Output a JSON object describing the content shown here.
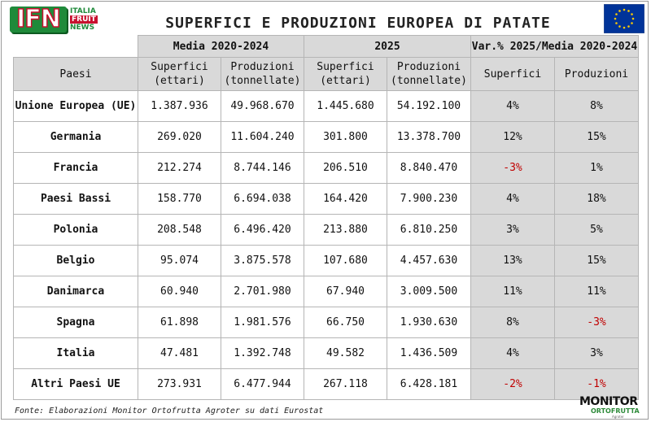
{
  "logo": {
    "letters": "IFN",
    "line1": "ITALIA",
    "line2": "FRUIT",
    "line3": "NEWS"
  },
  "title": "SUPERFICI E PRODUZIONI EUROPEA DI PATATE",
  "table": {
    "group_headers": [
      "Media 2020-2024",
      "2025",
      "Var.% 2025/Media 2020-2024"
    ],
    "first_col_header": "Paesi",
    "sub_headers": [
      [
        "Superfici",
        "(ettari)"
      ],
      [
        "Produzioni",
        "(tonnellate)"
      ],
      [
        "Superfici",
        "(ettari)"
      ],
      [
        "Produzioni",
        "(tonnellate)"
      ],
      [
        "Superfici",
        ""
      ],
      [
        "Produzioni",
        ""
      ]
    ],
    "rows": [
      {
        "country": "Unione Europea (UE)",
        "sup_avg": "1.387.936",
        "prod_avg": "49.968.670",
        "sup_2025": "1.445.680",
        "prod_2025": "54.192.100",
        "var_sup": "4%",
        "var_prod": "8%"
      },
      {
        "country": "Germania",
        "sup_avg": "269.020",
        "prod_avg": "11.604.240",
        "sup_2025": "301.800",
        "prod_2025": "13.378.700",
        "var_sup": "12%",
        "var_prod": "15%"
      },
      {
        "country": "Francia",
        "sup_avg": "212.274",
        "prod_avg": "8.744.146",
        "sup_2025": "206.510",
        "prod_2025": "8.840.470",
        "var_sup": "-3%",
        "var_prod": "1%"
      },
      {
        "country": "Paesi Bassi",
        "sup_avg": "158.770",
        "prod_avg": "6.694.038",
        "sup_2025": "164.420",
        "prod_2025": "7.900.230",
        "var_sup": "4%",
        "var_prod": "18%"
      },
      {
        "country": "Polonia",
        "sup_avg": "208.548",
        "prod_avg": "6.496.420",
        "sup_2025": "213.880",
        "prod_2025": "6.810.250",
        "var_sup": "3%",
        "var_prod": "5%"
      },
      {
        "country": "Belgio",
        "sup_avg": "95.074",
        "prod_avg": "3.875.578",
        "sup_2025": "107.680",
        "prod_2025": "4.457.630",
        "var_sup": "13%",
        "var_prod": "15%"
      },
      {
        "country": "Danimarca",
        "sup_avg": "60.940",
        "prod_avg": "2.701.980",
        "sup_2025": "67.940",
        "prod_2025": "3.009.500",
        "var_sup": "11%",
        "var_prod": "11%"
      },
      {
        "country": "Spagna",
        "sup_avg": "61.898",
        "prod_avg": "1.981.576",
        "sup_2025": "66.750",
        "prod_2025": "1.930.630",
        "var_sup": "8%",
        "var_prod": "-3%"
      },
      {
        "country": "Italia",
        "sup_avg": "47.481",
        "prod_avg": "1.392.748",
        "sup_2025": "49.582",
        "prod_2025": "1.436.509",
        "var_sup": "4%",
        "var_prod": "3%"
      },
      {
        "country": "Altri Paesi UE",
        "sup_avg": "273.931",
        "prod_avg": "6.477.944",
        "sup_2025": "267.118",
        "prod_2025": "6.428.181",
        "var_sup": "-2%",
        "var_prod": "-1%"
      }
    ]
  },
  "source": "Fonte: Elaborazioni Monitor Ortofrutta Agroter su dati Eurostat",
  "monitor_logo": {
    "line1": "MONITOR",
    "line2": "ORTOFRUTTA",
    "line3": "Agroter"
  },
  "colors": {
    "negative": "#c00000",
    "header_bg": "#d9d9d9",
    "ifn_green": "#1f8a3a",
    "ifn_red": "#c8102e",
    "eu_blue": "#003399",
    "eu_gold": "#ffcc00"
  },
  "icons": {
    "flag": "eu-flag-icon"
  }
}
